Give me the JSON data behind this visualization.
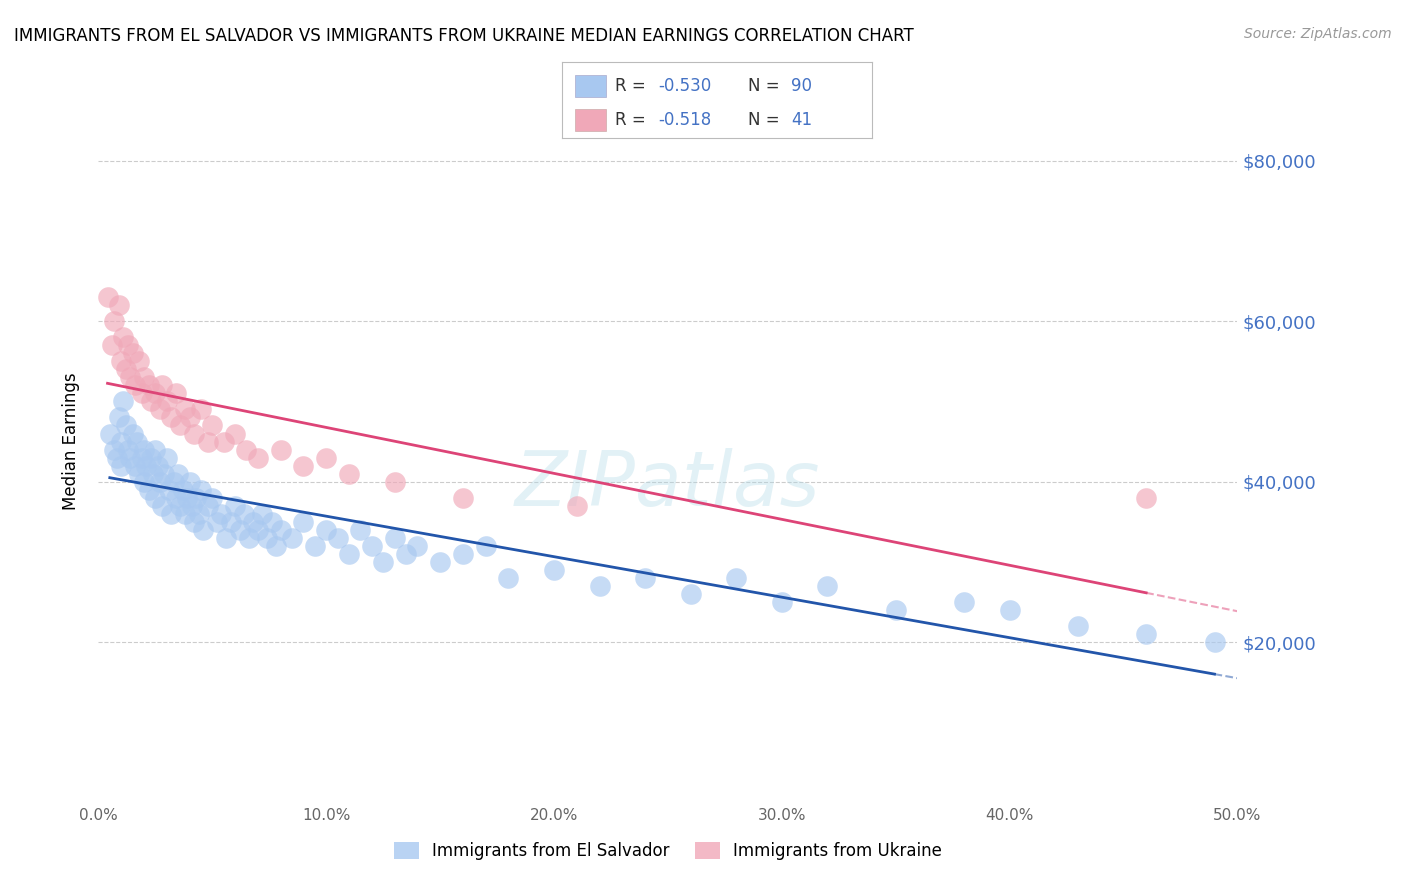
{
  "title": "IMMIGRANTS FROM EL SALVADOR VS IMMIGRANTS FROM UKRAINE MEDIAN EARNINGS CORRELATION CHART",
  "source": "Source: ZipAtlas.com",
  "ylabel": "Median Earnings",
  "y_ticks": [
    20000,
    40000,
    60000,
    80000
  ],
  "y_tick_labels": [
    "$20,000",
    "$40,000",
    "$60,000",
    "$80,000"
  ],
  "xlim": [
    0.0,
    0.5
  ],
  "ylim": [
    0,
    90000
  ],
  "color_el_salvador": "#A8C8F0",
  "color_ukraine": "#F0A8B8",
  "color_trendline_el_salvador": "#2255AA",
  "color_trendline_ukraine": "#DD4477",
  "watermark": "ZIPatlas",
  "label_R_N_color": "#4472C4",
  "label_text_color": "#333333",
  "el_salvador_x": [
    0.005,
    0.007,
    0.008,
    0.009,
    0.01,
    0.01,
    0.011,
    0.012,
    0.013,
    0.014,
    0.015,
    0.016,
    0.017,
    0.018,
    0.019,
    0.02,
    0.02,
    0.021,
    0.022,
    0.023,
    0.024,
    0.025,
    0.025,
    0.026,
    0.027,
    0.028,
    0.029,
    0.03,
    0.031,
    0.032,
    0.033,
    0.034,
    0.035,
    0.036,
    0.037,
    0.038,
    0.039,
    0.04,
    0.041,
    0.042,
    0.043,
    0.044,
    0.045,
    0.046,
    0.048,
    0.05,
    0.052,
    0.054,
    0.056,
    0.058,
    0.06,
    0.062,
    0.064,
    0.066,
    0.068,
    0.07,
    0.072,
    0.074,
    0.076,
    0.078,
    0.08,
    0.085,
    0.09,
    0.095,
    0.1,
    0.105,
    0.11,
    0.115,
    0.12,
    0.125,
    0.13,
    0.135,
    0.14,
    0.15,
    0.16,
    0.17,
    0.18,
    0.2,
    0.22,
    0.24,
    0.26,
    0.28,
    0.3,
    0.32,
    0.35,
    0.38,
    0.4,
    0.43,
    0.46,
    0.49
  ],
  "el_salvador_y": [
    46000,
    44000,
    43000,
    48000,
    45000,
    42000,
    50000,
    47000,
    44000,
    43000,
    46000,
    42000,
    45000,
    41000,
    43000,
    44000,
    40000,
    42000,
    39000,
    43000,
    41000,
    44000,
    38000,
    42000,
    40000,
    37000,
    41000,
    43000,
    39000,
    36000,
    40000,
    38000,
    41000,
    37000,
    39000,
    36000,
    38000,
    40000,
    37000,
    35000,
    38000,
    36000,
    39000,
    34000,
    37000,
    38000,
    35000,
    36000,
    33000,
    35000,
    37000,
    34000,
    36000,
    33000,
    35000,
    34000,
    36000,
    33000,
    35000,
    32000,
    34000,
    33000,
    35000,
    32000,
    34000,
    33000,
    31000,
    34000,
    32000,
    30000,
    33000,
    31000,
    32000,
    30000,
    31000,
    32000,
    28000,
    29000,
    27000,
    28000,
    26000,
    28000,
    25000,
    27000,
    24000,
    25000,
    24000,
    22000,
    21000,
    20000
  ],
  "ukraine_x": [
    0.004,
    0.006,
    0.007,
    0.009,
    0.01,
    0.011,
    0.012,
    0.013,
    0.014,
    0.015,
    0.016,
    0.018,
    0.019,
    0.02,
    0.022,
    0.023,
    0.025,
    0.027,
    0.028,
    0.03,
    0.032,
    0.034,
    0.036,
    0.038,
    0.04,
    0.042,
    0.045,
    0.048,
    0.05,
    0.055,
    0.06,
    0.065,
    0.07,
    0.08,
    0.09,
    0.1,
    0.11,
    0.13,
    0.16,
    0.21,
    0.46
  ],
  "ukraine_y": [
    63000,
    57000,
    60000,
    62000,
    55000,
    58000,
    54000,
    57000,
    53000,
    56000,
    52000,
    55000,
    51000,
    53000,
    52000,
    50000,
    51000,
    49000,
    52000,
    50000,
    48000,
    51000,
    47000,
    49000,
    48000,
    46000,
    49000,
    45000,
    47000,
    45000,
    46000,
    44000,
    43000,
    44000,
    42000,
    43000,
    41000,
    40000,
    38000,
    37000,
    38000
  ]
}
